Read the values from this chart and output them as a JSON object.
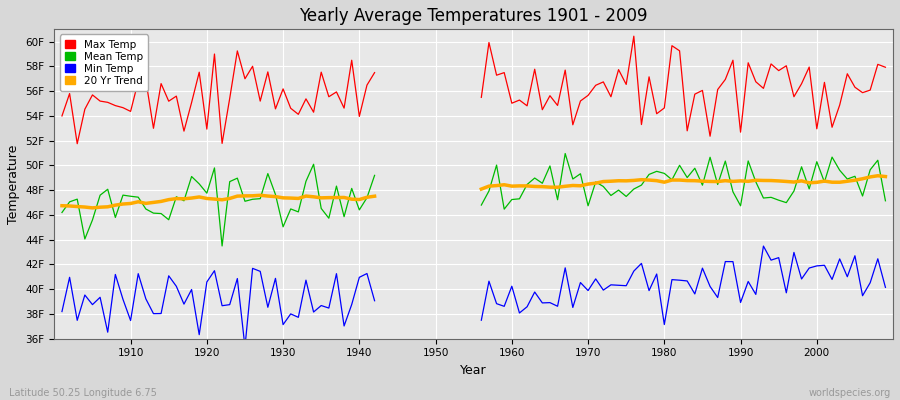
{
  "title": "Yearly Average Temperatures 1901 - 2009",
  "xlabel": "Year",
  "ylabel": "Temperature",
  "subtitle_lat": "Latitude 50.25 Longitude 6.75",
  "watermark": "worldspecies.org",
  "legend_labels": [
    "Max Temp",
    "Mean Temp",
    "Min Temp",
    "20 Yr Trend"
  ],
  "legend_colors": [
    "#ff0000",
    "#00bb00",
    "#0000ff",
    "#ffaa00"
  ],
  "bg_color": "#d8d8d8",
  "plot_bg_color": "#e8e8e8",
  "grid_color": "#ffffff",
  "ylim": [
    36,
    61
  ],
  "yticks": [
    36,
    38,
    40,
    42,
    44,
    46,
    48,
    50,
    52,
    54,
    56,
    58,
    60
  ],
  "ytick_labels": [
    "36F",
    "38F",
    "40F",
    "42F",
    "44F",
    "46F",
    "48F",
    "50F",
    "52F",
    "54F",
    "56F",
    "58F",
    "60F"
  ],
  "xticks": [
    1910,
    1920,
    1930,
    1940,
    1950,
    1960,
    1970,
    1980,
    1990,
    2000
  ],
  "year_start": 1901,
  "year_end": 2009,
  "gap_start": 1943,
  "gap_end": 1955
}
